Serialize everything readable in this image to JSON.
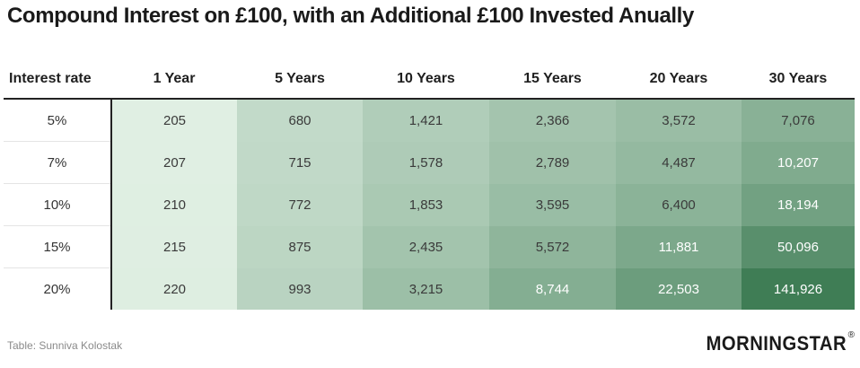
{
  "title": "Compound Interest on £100, with an Additional £100 Invested Anually",
  "source": "Table: Sunniva Kolostak",
  "logo": {
    "text": "MORNINGSTAR",
    "reg": "®"
  },
  "colors": {
    "low": "#e0efe3",
    "high": "#3f7d55",
    "rule": "#222222"
  },
  "chart_data": {
    "type": "heatmap",
    "title": "Compound Interest on £100, with an Additional £100 Invested Anually",
    "row_header": "Interest rate",
    "columns": [
      "1 Year",
      "5 Years",
      "10 Years",
      "15 Years",
      "20 Years",
      "30 Years"
    ],
    "rows": [
      {
        "label": "5%",
        "values": [
          "205",
          "680",
          "1,421",
          "2,366",
          "3,572",
          "7,076"
        ]
      },
      {
        "label": "7%",
        "values": [
          "207",
          "715",
          "1,578",
          "2,789",
          "4,487",
          "10,207"
        ]
      },
      {
        "label": "10%",
        "values": [
          "210",
          "772",
          "1,853",
          "3,595",
          "6,400",
          "18,194"
        ]
      },
      {
        "label": "15%",
        "values": [
          "215",
          "875",
          "2,435",
          "5,572",
          "11,881",
          "50,096"
        ]
      },
      {
        "label": "20%",
        "values": [
          "220",
          "993",
          "3,215",
          "8,744",
          "22,503",
          "141,926"
        ]
      }
    ]
  }
}
